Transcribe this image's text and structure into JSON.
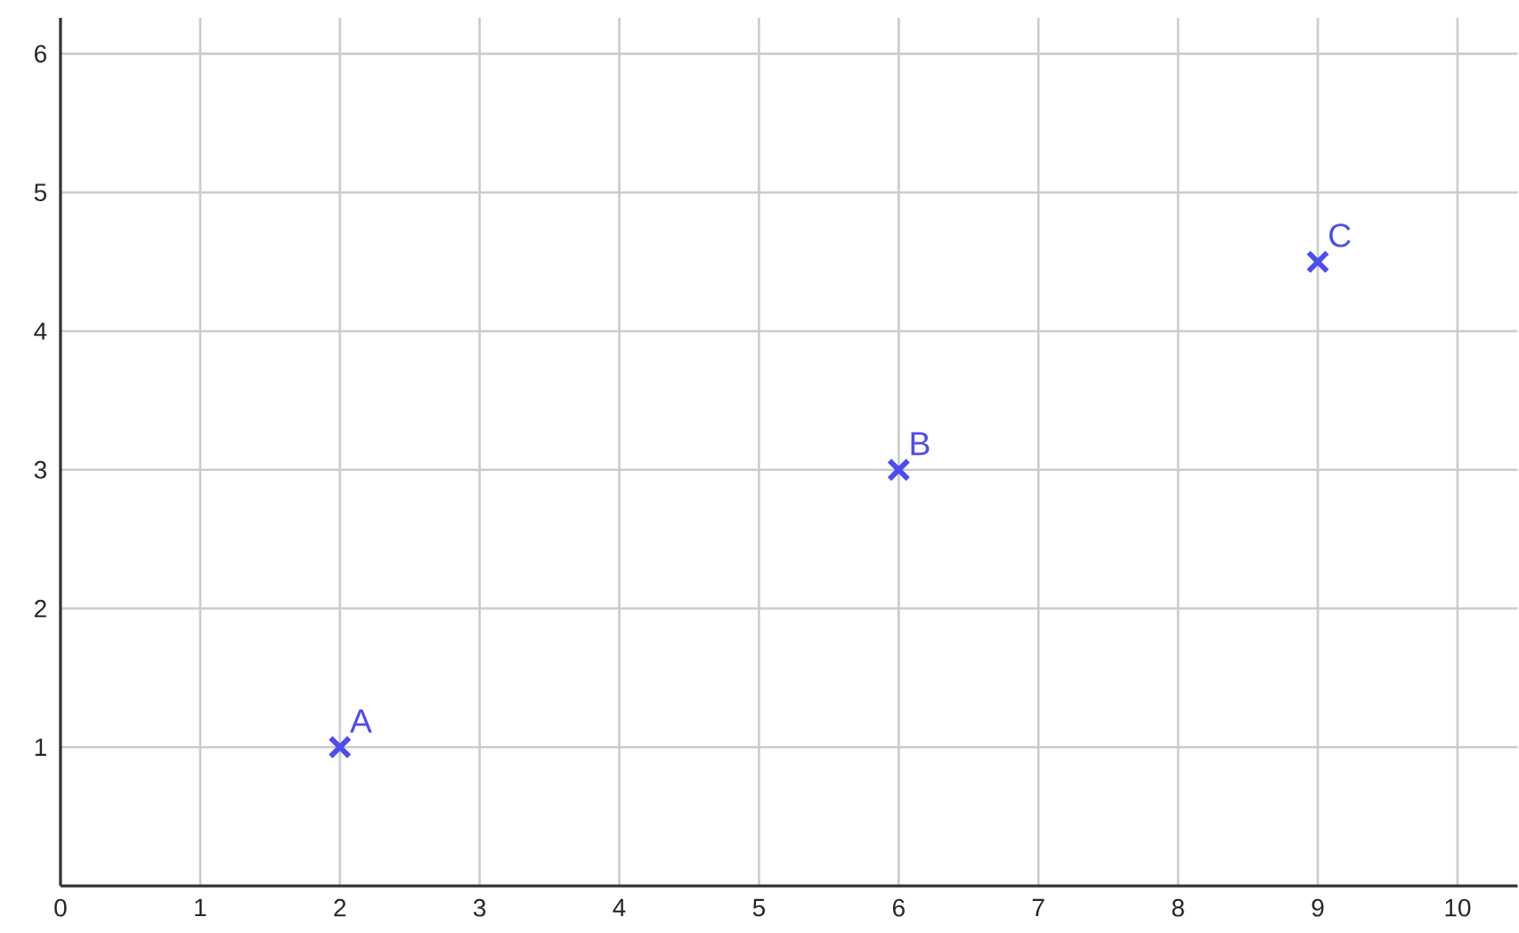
{
  "chart_data": {
    "type": "scatter",
    "x": [
      2,
      6,
      9
    ],
    "values": [
      1,
      3,
      4.5
    ],
    "color": "#4c4cf0",
    "marker": "cross",
    "xlim": [
      0,
      10.43
    ],
    "ylim": [
      0,
      6.26
    ],
    "xticks": [
      0,
      1,
      2,
      3,
      4,
      5,
      6,
      7,
      8,
      9,
      10
    ],
    "yticks": [
      1,
      2,
      3,
      4,
      5,
      6
    ],
    "grid": true,
    "annotations": [
      {
        "text": "A",
        "x": 2,
        "y": 1
      },
      {
        "text": "B",
        "x": 6,
        "y": 3
      },
      {
        "text": "C",
        "x": 9,
        "y": 4.5
      }
    ]
  }
}
